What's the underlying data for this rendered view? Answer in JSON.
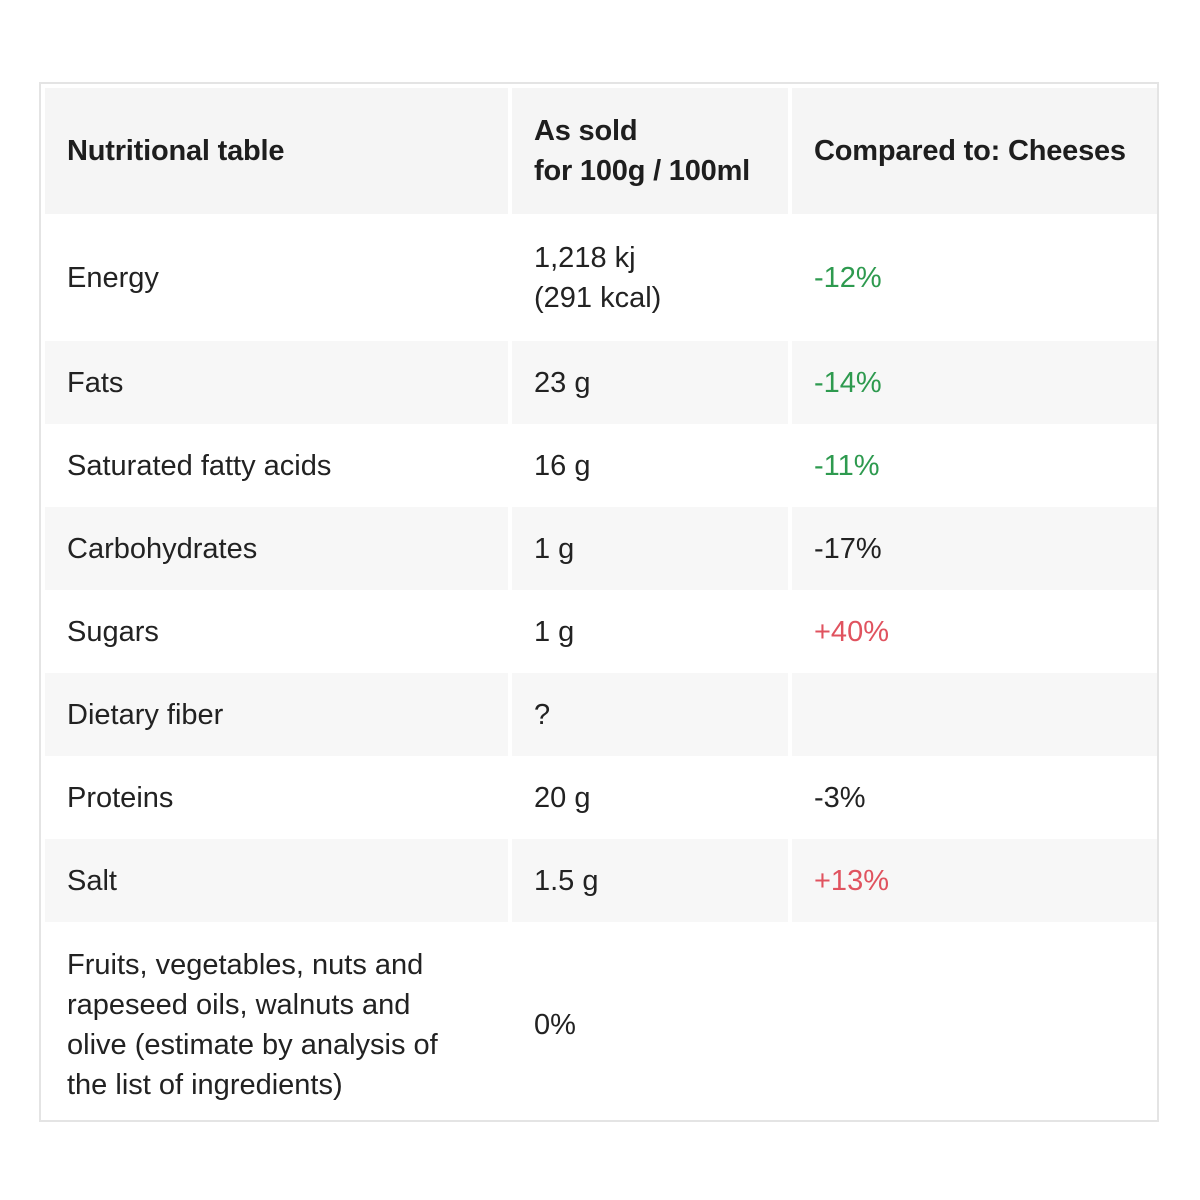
{
  "table": {
    "header": {
      "col1": "Nutritional table",
      "col2_line1": "As sold",
      "col2_line2": "for 100g / 100ml",
      "col3": "Compared to: Cheeses"
    },
    "rows": [
      {
        "name": "Energy",
        "value_line1": "1,218 kj",
        "value_line2": "(291 kcal)",
        "compare": "-12%",
        "compare_status": "good"
      },
      {
        "name": "Fats",
        "value": "23 g",
        "compare": "-14%",
        "compare_status": "good"
      },
      {
        "name": "Saturated fatty acids",
        "value": "16 g",
        "compare": "-11%",
        "compare_status": "good"
      },
      {
        "name": "Carbohydrates",
        "value": "1 g",
        "compare": "-17%",
        "compare_status": "neutral"
      },
      {
        "name": "Sugars",
        "value": "1 g",
        "compare": "+40%",
        "compare_status": "bad"
      },
      {
        "name": "Dietary fiber",
        "value": "?",
        "compare": "",
        "compare_status": "neutral"
      },
      {
        "name": "Proteins",
        "value": "20 g",
        "compare": "-3%",
        "compare_status": "neutral"
      },
      {
        "name": "Salt",
        "value": "1.5 g",
        "compare": "+13%",
        "compare_status": "bad"
      },
      {
        "name_line1": "Fruits, vegetables, nuts and",
        "name_line2": "rapeseed oils, walnuts and",
        "name_line3": "olive (estimate by analysis of",
        "name_line4": "the list of ingredients)",
        "value": "0%",
        "compare": ""
      }
    ]
  },
  "colors": {
    "good": "#2e9a4f",
    "bad": "#e0535f",
    "neutral": "#222222",
    "header_bg": "#f5f5f5",
    "stripe_bg": "#f7f7f7"
  }
}
